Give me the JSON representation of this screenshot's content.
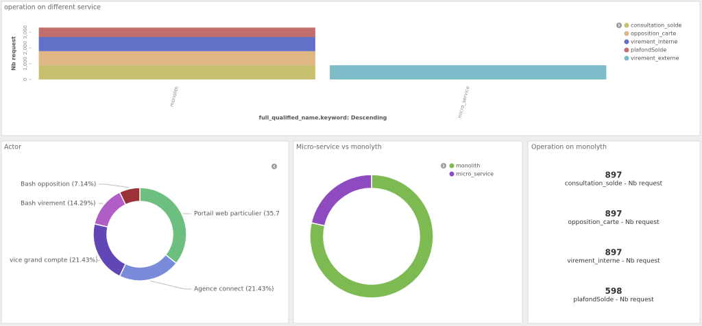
{
  "chart_data": [
    {
      "type": "bar",
      "title": "operation on different service",
      "y_label": "Nb request",
      "x_label": "full_qualified_name.keyword: Descending",
      "categories": [
        "monolith",
        "micro_service"
      ],
      "series": [
        {
          "name": "consultation_solde",
          "color": "#c8c06e",
          "values": [
            897,
            null
          ]
        },
        {
          "name": "opposition_carte",
          "color": "#e0b685",
          "values": [
            897,
            null
          ]
        },
        {
          "name": "virement_interne",
          "color": "#6270c8",
          "values": [
            897,
            null
          ]
        },
        {
          "name": "plafondSolde",
          "color": "#c06f6c",
          "values": [
            598,
            null
          ]
        },
        {
          "name": "virement_externe",
          "color": "#7dbcc9",
          "values": [
            null,
            900
          ]
        }
      ],
      "stacked": true,
      "legend": "right",
      "ylim": [
        0,
        3300
      ],
      "yticks": [
        0,
        {
          "value": 1000,
          "label": "1,000"
        },
        {
          "value": 2000,
          "label": "2,000"
        },
        {
          "value": 3000,
          "label": "3,000"
        }
      ]
    },
    {
      "type": "pie",
      "title": "Actor",
      "donut": true,
      "legend": false,
      "labels": [
        "Portail web particulier (35.7",
        "Agence connect (21.43%)",
        "vice grand compte (21.43%)",
        "Bash virement (14.29%)",
        "Bash opposition (7.14%)"
      ],
      "values": [
        35.71,
        21.43,
        21.43,
        14.29,
        7.14
      ],
      "colors": [
        "#6dbf80",
        "#7a8bd9",
        "#6146b5",
        "#b15dc6",
        "#9b3237"
      ]
    },
    {
      "type": "pie",
      "title": "Micro-service vs monolyth",
      "donut": true,
      "legend": true,
      "labels": [
        "monolith",
        "micro_service"
      ],
      "values": [
        3289,
        900
      ],
      "colors": [
        "#7dbb52",
        "#8d4bbf"
      ]
    },
    {
      "type": "metric",
      "title": "Operation on monolyth",
      "values": [
        897,
        897,
        897,
        598
      ],
      "labels": [
        "consultation_solde - Nb request",
        "opposition_carte - Nb request",
        "virement_interne - Nb request",
        "plafondSolde - Nb request"
      ]
    }
  ]
}
